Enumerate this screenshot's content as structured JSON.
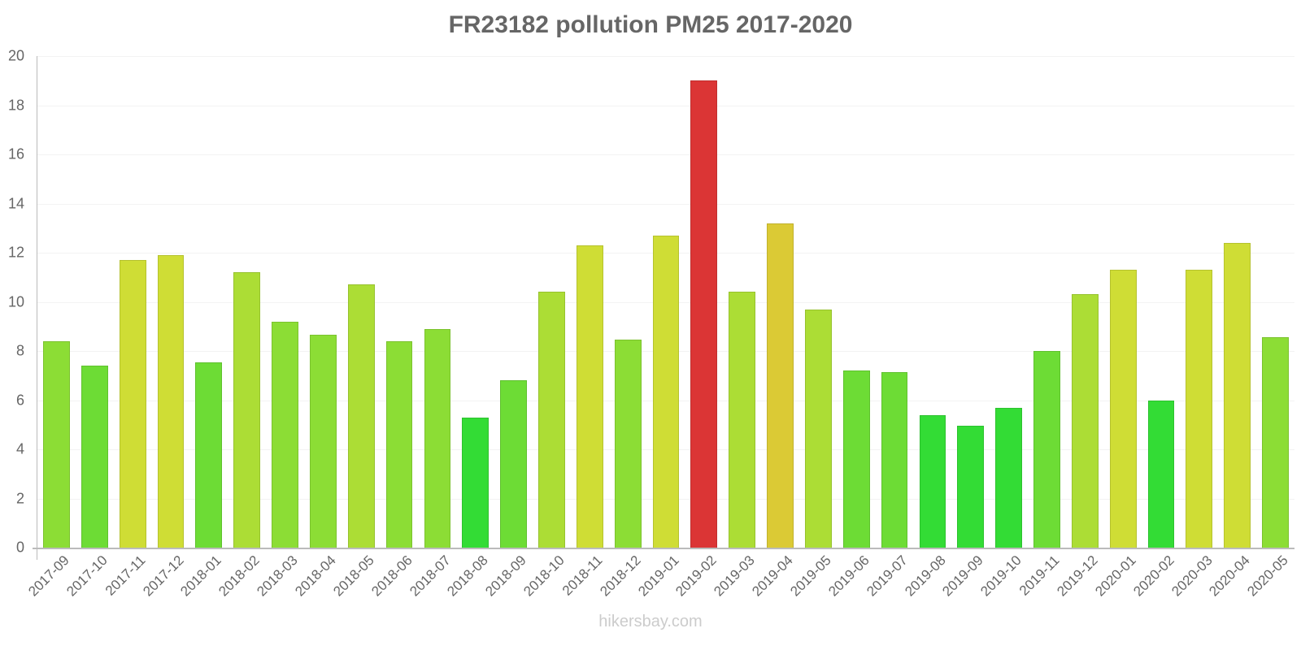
{
  "chart_data": {
    "type": "bar",
    "title": "FR23182 pollution PM25 2017-2020",
    "xlabel": "",
    "ylabel": "",
    "ylim": [
      0,
      20
    ],
    "yticks": [
      0,
      2,
      4,
      6,
      8,
      10,
      12,
      14,
      16,
      18,
      20
    ],
    "grid": true,
    "legend": null,
    "categories": [
      "2017-09",
      "2017-10",
      "2017-11",
      "2017-12",
      "2018-01",
      "2018-02",
      "2018-03",
      "2018-04",
      "2018-05",
      "2018-06",
      "2018-07",
      "2018-08",
      "2018-09",
      "2018-10",
      "2018-11",
      "2018-12",
      "2019-01",
      "2019-02",
      "2019-03",
      "2019-04",
      "2019-05",
      "2019-06",
      "2019-07",
      "2019-08",
      "2019-09",
      "2019-10",
      "2019-11",
      "2019-12",
      "2020-01",
      "2020-02",
      "2020-03",
      "2020-04",
      "2020-05"
    ],
    "values": [
      8.4,
      7.4,
      11.7,
      11.9,
      7.55,
      11.2,
      9.2,
      8.65,
      10.7,
      8.4,
      8.9,
      5.3,
      6.8,
      10.4,
      12.3,
      8.45,
      12.7,
      19.0,
      10.4,
      13.2,
      9.7,
      7.2,
      7.15,
      5.4,
      4.95,
      5.7,
      8.0,
      10.3,
      11.3,
      6.0,
      11.3,
      12.4,
      8.55
    ],
    "colors": [
      "#8cdd35",
      "#6ddc35",
      "#cfdd35",
      "#cfdd35",
      "#6ddc35",
      "#acdd35",
      "#8cdd35",
      "#8cdd35",
      "#acdd35",
      "#8cdd35",
      "#8cdd35",
      "#33dc35",
      "#6ddc35",
      "#acdd35",
      "#cfdd35",
      "#8cdd35",
      "#cfdd35",
      "#db3535",
      "#acdd35",
      "#dbca35",
      "#acdd35",
      "#6ddc35",
      "#6ddc35",
      "#33dc35",
      "#33dc35",
      "#33dc35",
      "#6ddc35",
      "#acdd35",
      "#cfdd35",
      "#33dc35",
      "#cfdd35",
      "#cfdd35",
      "#8cdd35"
    ]
  },
  "header": {
    "title": "FR23182 pollution PM25 2017-2020"
  },
  "footer": {
    "watermark": "hikersbay.com"
  }
}
